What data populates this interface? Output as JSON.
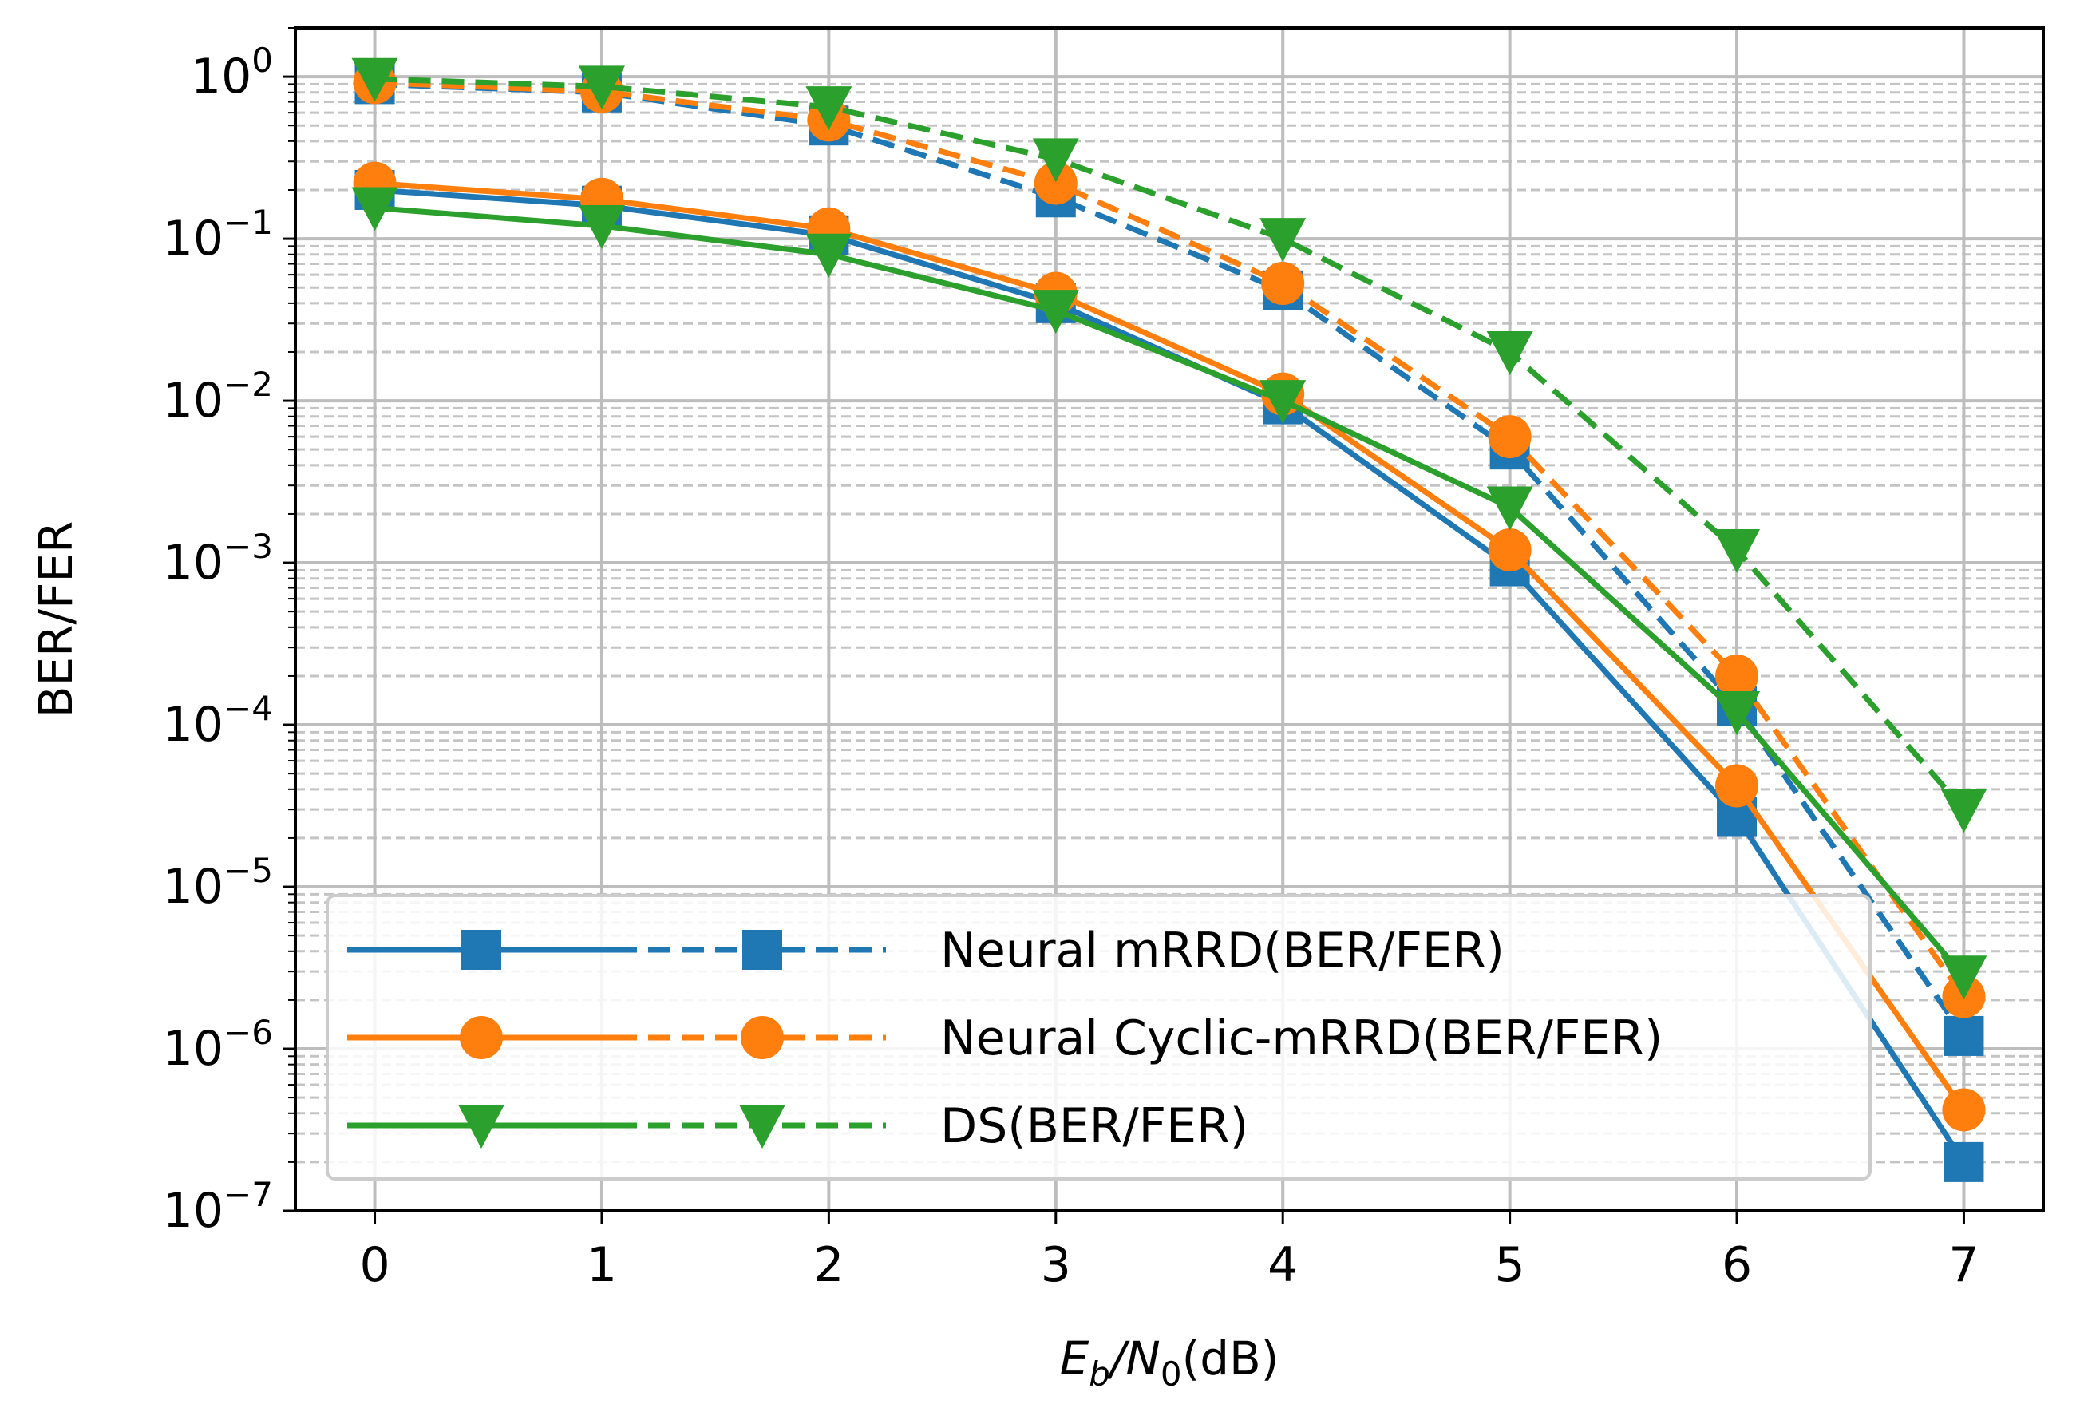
{
  "chart_data": {
    "type": "line",
    "title": "",
    "xlabel": "E_b/N_0(dB)",
    "ylabel": "BER/FER",
    "x": [
      0,
      1,
      2,
      3,
      4,
      5,
      6,
      7
    ],
    "xlim": [
      -0.35,
      7.35
    ],
    "ylim": [
      1e-07,
      2
    ],
    "yscale": "log",
    "grid": true,
    "legend_position": "lower-left",
    "x_ticks": [
      "0",
      "1",
      "2",
      "3",
      "4",
      "5",
      "6",
      "7"
    ],
    "y_ticks": [
      {
        "base": "10",
        "exp": "0"
      },
      {
        "base": "10",
        "exp": "−1"
      },
      {
        "base": "10",
        "exp": "−2"
      },
      {
        "base": "10",
        "exp": "−3"
      },
      {
        "base": "10",
        "exp": "−4"
      },
      {
        "base": "10",
        "exp": "−5"
      },
      {
        "base": "10",
        "exp": "−6"
      },
      {
        "base": "10",
        "exp": "−7"
      }
    ],
    "series": [
      {
        "name": "Neural mRRD BER",
        "legend_group": 0,
        "style": "solid",
        "color": "#1f77b4",
        "marker": "square",
        "values": [
          0.2,
          0.16,
          0.105,
          0.04,
          0.0095,
          0.00095,
          2.7e-05,
          2e-07
        ]
      },
      {
        "name": "Neural mRRD FER",
        "legend_group": 0,
        "style": "dashed",
        "color": "#1f77b4",
        "marker": "square",
        "values": [
          0.9,
          0.8,
          0.5,
          0.18,
          0.048,
          0.005,
          0.00013,
          1.2e-06
        ]
      },
      {
        "name": "Neural Cyclic-mRRD BER",
        "legend_group": 1,
        "style": "solid",
        "color": "#ff7f0e",
        "marker": "circle",
        "values": [
          0.22,
          0.175,
          0.115,
          0.046,
          0.011,
          0.0012,
          4.2e-05,
          4.2e-07
        ]
      },
      {
        "name": "Neural Cyclic-mRRD FER",
        "legend_group": 1,
        "style": "dashed",
        "color": "#ff7f0e",
        "marker": "circle",
        "values": [
          0.92,
          0.81,
          0.54,
          0.22,
          0.053,
          0.006,
          0.0002,
          2.1e-06
        ]
      },
      {
        "name": "DS BER",
        "legend_group": 2,
        "style": "solid",
        "color": "#2ca02c",
        "marker": "triangle-down",
        "values": [
          0.155,
          0.12,
          0.08,
          0.036,
          0.01,
          0.0022,
          0.00012,
          2.8e-06
        ]
      },
      {
        "name": "DS FER",
        "legend_group": 2,
        "style": "dashed",
        "color": "#2ca02c",
        "marker": "triangle-down",
        "values": [
          0.97,
          0.87,
          0.65,
          0.31,
          0.1,
          0.02,
          0.0012,
          3e-05
        ]
      }
    ],
    "legend": [
      {
        "label": "Neural mRRD(BER/FER)",
        "color": "#1f77b4",
        "marker": "square"
      },
      {
        "label": "Neural Cyclic-mRRD(BER/FER)",
        "color": "#ff7f0e",
        "marker": "circle"
      },
      {
        "label": " DS(BER/FER)",
        "color": "#2ca02c",
        "marker": "triangle-down"
      }
    ]
  },
  "labels": {
    "ylabel": "BER/FER",
    "xlabel_e": "E",
    "xlabel_b": "b",
    "xlabel_slash_n": "/N",
    "xlabel_zero": "0",
    "xlabel_unit": "(dB)"
  }
}
